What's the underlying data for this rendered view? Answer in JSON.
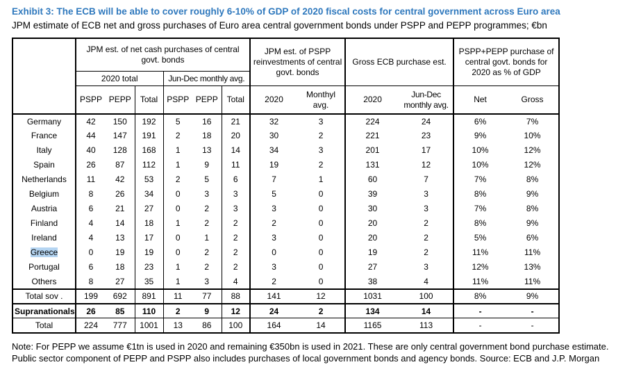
{
  "header": {
    "title": "Exhibit 3: The ECB will be able to cover roughly 6-10% of GDP of 2020 fiscal costs for central government across Euro area",
    "subtitle": "JPM estimate of ECB net and gross purchases of Euro area central government bonds under PSPP and PEPP programmes; €bn"
  },
  "table": {
    "groups": {
      "net_cash": "JPM est. of net cash purchases of central govt. bonds",
      "reinvest": "JPM est. of PSPP reinvestments of central govt. bonds",
      "gross_ecb": "Gross ECB purchase est.",
      "pct_gdp": "PSPP+PEPP purchase of central govt. bonds for 2020 as % of GDP"
    },
    "subgroups": {
      "total_2020": "2020 total",
      "jun_dec": "Jun-Dec monthly avg."
    },
    "columns": [
      "PSPP",
      "PEPP",
      "Total",
      "PSPP",
      "PEPP",
      "Total",
      "2020",
      "Monthyl\navg.",
      "2020",
      "Jun-Dec\nmonthly avg.",
      "Net",
      "Gross"
    ],
    "rows": [
      {
        "name": "Germany",
        "values": [
          "42",
          "150",
          "192",
          "5",
          "16",
          "21",
          "32",
          "3",
          "224",
          "24",
          "6%",
          "7%"
        ]
      },
      {
        "name": "France",
        "values": [
          "44",
          "147",
          "191",
          "2",
          "18",
          "20",
          "30",
          "2",
          "221",
          "23",
          "9%",
          "10%"
        ]
      },
      {
        "name": "Italy",
        "values": [
          "40",
          "128",
          "168",
          "1",
          "13",
          "14",
          "34",
          "3",
          "201",
          "17",
          "10%",
          "12%"
        ]
      },
      {
        "name": "Spain",
        "values": [
          "26",
          "87",
          "112",
          "1",
          "9",
          "11",
          "19",
          "2",
          "131",
          "12",
          "10%",
          "12%"
        ]
      },
      {
        "name": "Netherlands",
        "values": [
          "11",
          "42",
          "53",
          "2",
          "5",
          "6",
          "7",
          "1",
          "60",
          "7",
          "7%",
          "8%"
        ]
      },
      {
        "name": "Belgium",
        "values": [
          "8",
          "26",
          "34",
          "0",
          "3",
          "3",
          "5",
          "0",
          "39",
          "3",
          "8%",
          "9%"
        ]
      },
      {
        "name": "Austria",
        "values": [
          "6",
          "21",
          "27",
          "0",
          "2",
          "3",
          "3",
          "0",
          "30",
          "3",
          "7%",
          "8%"
        ]
      },
      {
        "name": "Finland",
        "values": [
          "4",
          "14",
          "18",
          "1",
          "2",
          "2",
          "2",
          "0",
          "20",
          "2",
          "8%",
          "9%"
        ]
      },
      {
        "name": "Ireland",
        "values": [
          "4",
          "13",
          "17",
          "0",
          "1",
          "2",
          "3",
          "0",
          "20",
          "2",
          "5%",
          "6%"
        ]
      },
      {
        "name": "Greece",
        "highlight": true,
        "values": [
          "0",
          "19",
          "19",
          "0",
          "2",
          "2",
          "0",
          "0",
          "19",
          "2",
          "11%",
          "11%"
        ]
      },
      {
        "name": "Portugal",
        "values": [
          "6",
          "18",
          "23",
          "1",
          "2",
          "2",
          "3",
          "0",
          "27",
          "3",
          "12%",
          "13%"
        ]
      },
      {
        "name": "Others",
        "values": [
          "8",
          "27",
          "35",
          "1",
          "3",
          "4",
          "2",
          "0",
          "38",
          "4",
          "11%",
          "11%"
        ]
      },
      {
        "name": "Total sov .",
        "kind": "row-total-sov",
        "values": [
          "199",
          "692",
          "891",
          "11",
          "77",
          "88",
          "141",
          "12",
          "1031",
          "100",
          "8%",
          "9%"
        ]
      },
      {
        "name": "Supranationals",
        "kind": "row-supra",
        "values": [
          "26",
          "85",
          "110",
          "2",
          "9",
          "12",
          "24",
          "2",
          "134",
          "14",
          "-",
          "-"
        ]
      },
      {
        "name": "Total",
        "kind": "row-total",
        "values": [
          "224",
          "777",
          "1001",
          "13",
          "86",
          "100",
          "164",
          "14",
          "1165",
          "113",
          "-",
          "-"
        ]
      }
    ]
  },
  "note": "Note: For PEPP we assume €1tn is used in 2020 and remaining €350bn is used in 2021. These are only central government bond purchase estimate. Public sector component of PEPP and PSPP also includes purchases of local government bonds and agency bonds. Source: ECB and J.P. Morgan"
}
